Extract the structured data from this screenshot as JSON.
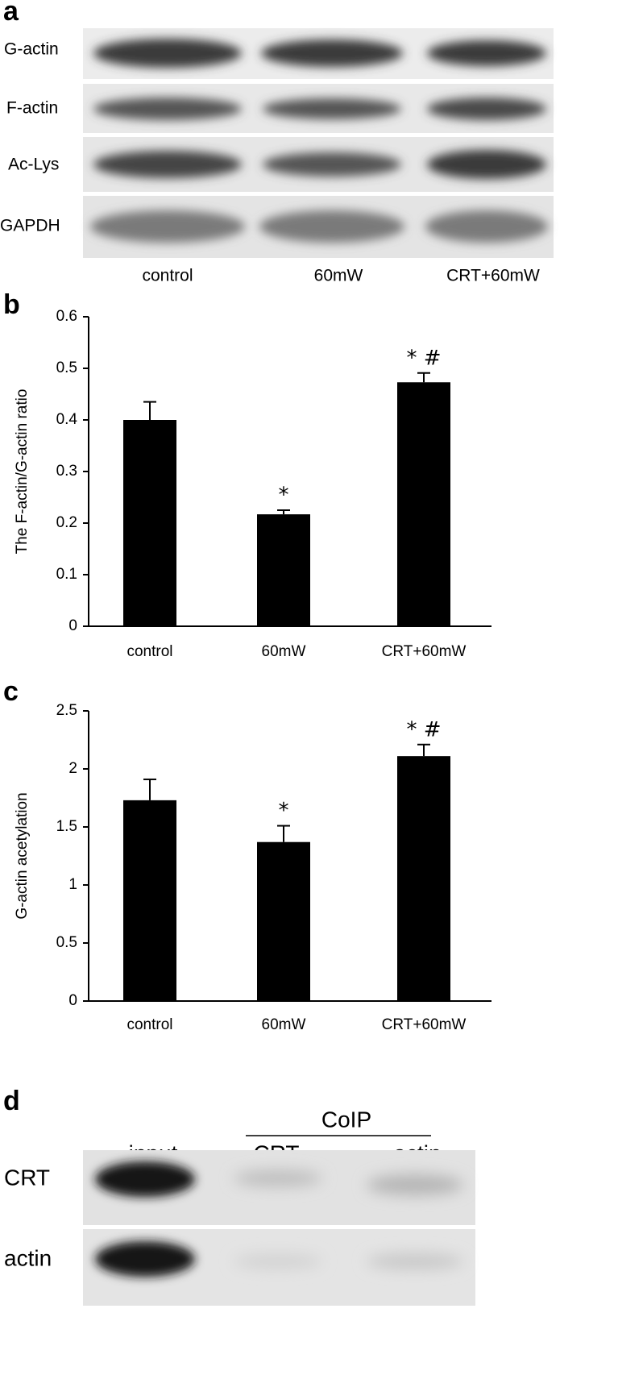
{
  "panel_labels": [
    "a",
    "b",
    "c",
    "d"
  ],
  "blot_a": {
    "rows": [
      "G-actin",
      "F-actin",
      "Ac-Lys",
      "GAPDH"
    ],
    "lanes": [
      "control",
      "60mW",
      "CRT+60mW"
    ]
  },
  "chart_data": [
    {
      "type": "bar",
      "ylabel": "The F-actin/G-actin ratio",
      "categories": [
        "control",
        "60mW",
        "CRT+60mW"
      ],
      "values": [
        0.4,
        0.217,
        0.473
      ],
      "errors": [
        0.035,
        0.008,
        0.018
      ],
      "color": "#000000",
      "ylim": [
        0,
        0.6
      ],
      "yticks": [
        0,
        0.1,
        0.2,
        0.3,
        0.4,
        0.5,
        0.6
      ],
      "annotations": [
        {
          "category": "60mW",
          "text": "*"
        },
        {
          "category": "CRT+60mW",
          "text": "*  #"
        }
      ]
    },
    {
      "type": "bar",
      "ylabel": "G-actin acetylation",
      "categories": [
        "control",
        "60mW",
        "CRT+60mW"
      ],
      "values": [
        1.73,
        1.37,
        2.11
      ],
      "errors": [
        0.18,
        0.14,
        0.1
      ],
      "color": "#000000",
      "ylim": [
        0,
        2.5
      ],
      "yticks": [
        0,
        0.5,
        1,
        1.5,
        2,
        2.5
      ],
      "annotations": [
        {
          "category": "60mW",
          "text": "*"
        },
        {
          "category": "CRT+60mW",
          "text": "*  #"
        }
      ]
    }
  ],
  "blot_d": {
    "group": "CoIP",
    "lanes": [
      "input",
      "CRT",
      "actin"
    ],
    "rows": [
      "CRT",
      "actin"
    ]
  }
}
